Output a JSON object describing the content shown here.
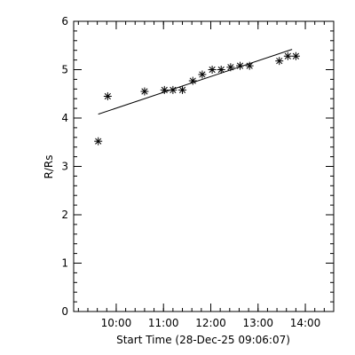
{
  "chart_data": {
    "type": "scatter",
    "title": "",
    "xlabel": "Start Time (28-Dec-25 09:06:07)",
    "ylabel": "R/Rs",
    "xlim": [
      9.1,
      14.6
    ],
    "ylim": [
      0,
      6
    ],
    "x_ticks": [
      {
        "value": 10,
        "label": "10:00"
      },
      {
        "value": 11,
        "label": "11:00"
      },
      {
        "value": 12,
        "label": "12:00"
      },
      {
        "value": 13,
        "label": "13:00"
      },
      {
        "value": 14,
        "label": "14:00"
      }
    ],
    "y_ticks": [
      {
        "value": 0,
        "label": "0"
      },
      {
        "value": 1,
        "label": "1"
      },
      {
        "value": 2,
        "label": "2"
      },
      {
        "value": 3,
        "label": "3"
      },
      {
        "value": 4,
        "label": "4"
      },
      {
        "value": 5,
        "label": "5"
      },
      {
        "value": 6,
        "label": "6"
      }
    ],
    "x_minor_step": 0.2,
    "y_minor_step": 0.2,
    "grid": false,
    "series": [
      {
        "kind": "points",
        "marker": "asterisk",
        "x": [
          9.62,
          9.82,
          10.6,
          11.02,
          11.2,
          11.4,
          11.62,
          11.82,
          12.03,
          12.22,
          12.42,
          12.62,
          12.82,
          13.45,
          13.63,
          13.8
        ],
        "y": [
          3.52,
          4.45,
          4.55,
          4.58,
          4.58,
          4.58,
          4.77,
          4.9,
          5.0,
          5.0,
          5.05,
          5.08,
          5.08,
          5.18,
          5.28,
          5.28
        ]
      },
      {
        "kind": "fit_line",
        "x": [
          9.62,
          13.72
        ],
        "y": [
          4.08,
          5.42
        ]
      }
    ]
  }
}
